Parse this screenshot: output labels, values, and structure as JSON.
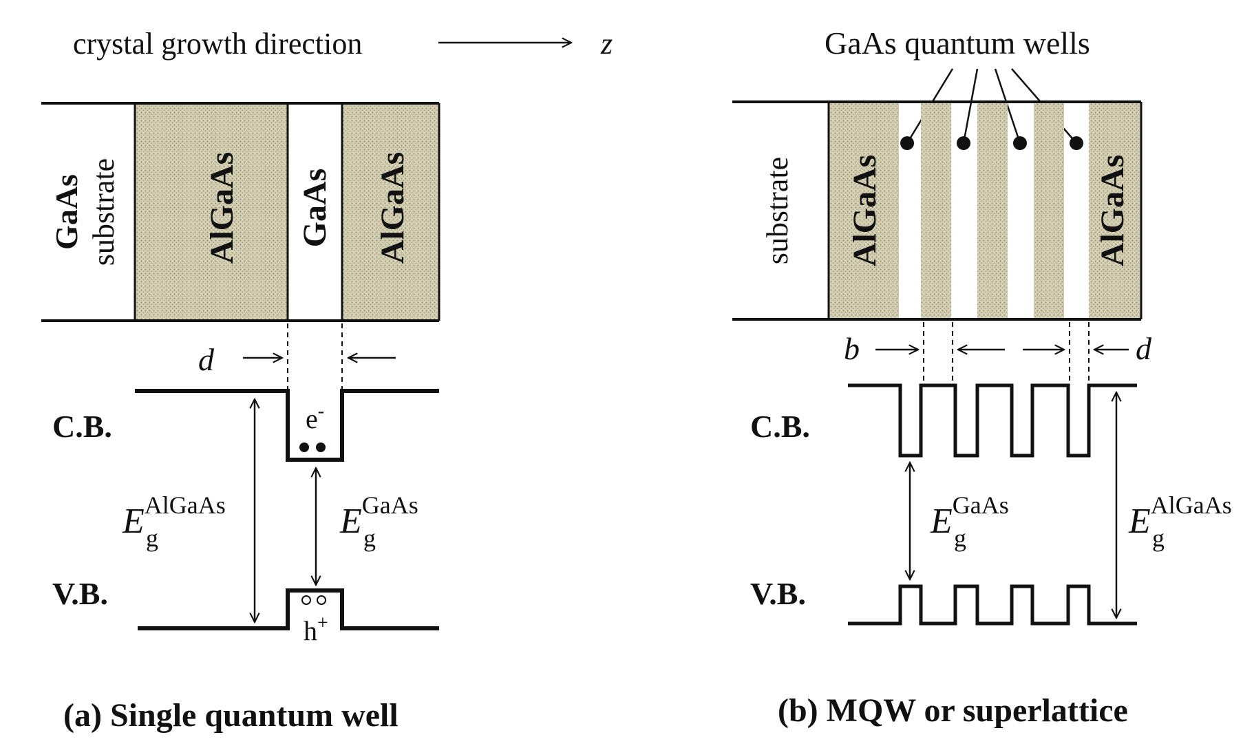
{
  "panel_a": {
    "header_text": "crystal growth direction",
    "axis_label": "z",
    "layers": [
      "GaAs",
      "substrate",
      "AlGaAs",
      "GaAs",
      "AlGaAs"
    ],
    "width_label": "d",
    "cb_label": "C.B.",
    "vb_label": "V.B.",
    "electron_label": "e",
    "electron_sup": "-",
    "hole_label": "h",
    "hole_sup": "+",
    "eg_symbol": "E",
    "eg_sub": "g",
    "eg_barrier_sup": "AlGaAs",
    "eg_well_sup": "GaAs",
    "caption": "(a) Single quantum well"
  },
  "panel_b": {
    "wells_label": "GaAs quantum wells",
    "layers": [
      "substrate",
      "AlGaAs",
      "AlGaAs"
    ],
    "barrier_label": "b",
    "width_label": "d",
    "cb_label": "C.B.",
    "vb_label": "V.B.",
    "eg_symbol": "E",
    "eg_sub": "g",
    "eg_well_sup": "GaAs",
    "eg_barrier_sup": "AlGaAs",
    "caption": "(b) MQW or superlattice"
  }
}
